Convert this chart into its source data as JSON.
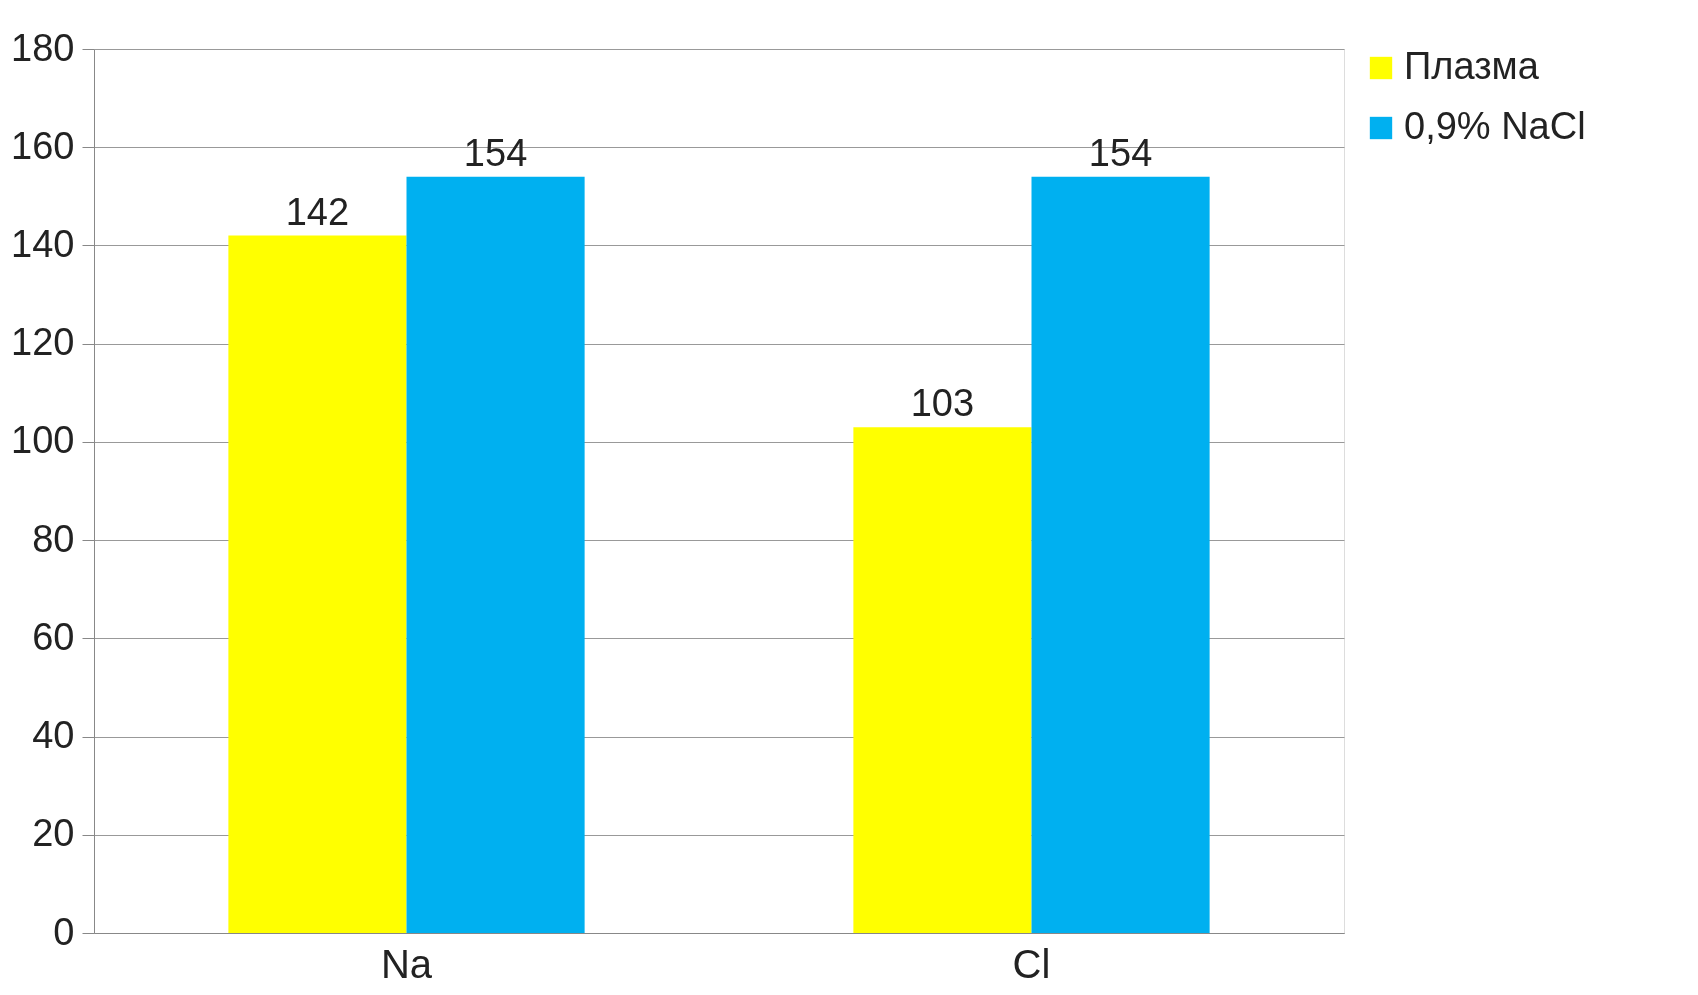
{
  "chart_data": {
    "type": "bar",
    "categories": [
      "Na",
      "Cl"
    ],
    "series": [
      {
        "name": "Плазма",
        "color": "#ffff00",
        "values": [
          142,
          103
        ]
      },
      {
        "name": "0,9% NaCl",
        "color": "#00b0f0",
        "values": [
          154,
          154
        ]
      }
    ],
    "ylim": [
      0,
      180
    ],
    "yticks": [
      0,
      20,
      40,
      60,
      80,
      100,
      120,
      140,
      160,
      180
    ],
    "grid": "y",
    "legend": "right",
    "data_labels": true
  }
}
